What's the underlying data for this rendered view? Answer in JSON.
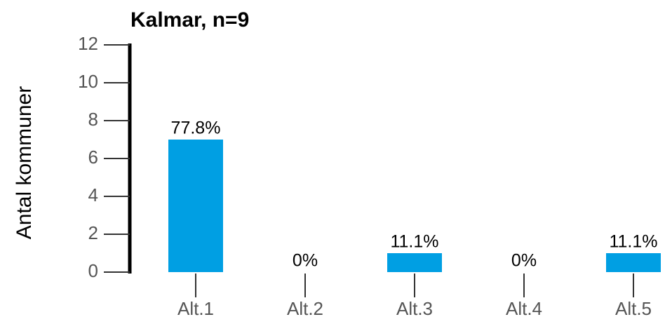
{
  "chart_data": {
    "type": "bar",
    "title": "Kalmar, n=9",
    "y_label": "Antal kommuner",
    "categories": [
      "Alt.1",
      "Alt.2",
      "Alt.3",
      "Alt.4",
      "Alt.5"
    ],
    "values": [
      7,
      0,
      1,
      0,
      1
    ],
    "value_labels": [
      "77.8%",
      "0%",
      "11.1%",
      "0%",
      "11.1%"
    ],
    "color": "#009fe3",
    "ylim": [
      0,
      12
    ],
    "yticks": [
      0,
      2,
      4,
      6,
      8,
      10,
      12
    ],
    "grid": false
  }
}
